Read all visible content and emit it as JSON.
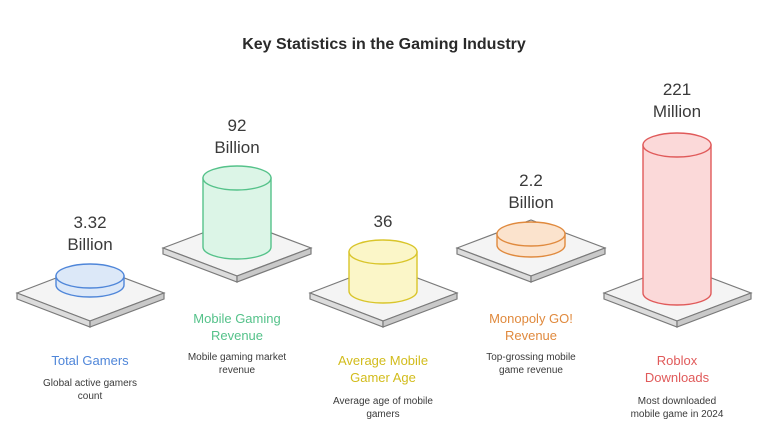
{
  "title": "Key Statistics in the Gaming Industry",
  "items": [
    {
      "value_line1": "3.32",
      "value_line2": "Billion",
      "label_line1": "Total Gamers",
      "label_line2": "",
      "desc_line1": "Global active gamers",
      "desc_line2": "count",
      "color": "#4f86d9",
      "fill": "#dce8f8"
    },
    {
      "value_line1": "92",
      "value_line2": "Billion",
      "label_line1": "Mobile Gaming",
      "label_line2": "Revenue",
      "desc_line1": "Mobile gaming market",
      "desc_line2": "revenue",
      "color": "#55c28a",
      "fill": "#dcf5e7"
    },
    {
      "value_line1": "36",
      "value_line2": "",
      "label_line1": "Average Mobile",
      "label_line2": "Gamer Age",
      "desc_line1": "Average age of mobile",
      "desc_line2": "gamers",
      "color": "#d9c52a",
      "fill": "#fbf6c8"
    },
    {
      "value_line1": "2.2",
      "value_line2": "Billion",
      "label_line1": "Monopoly GO!",
      "label_line2": "Revenue",
      "desc_line1": "Top-grossing mobile",
      "desc_line2": "game revenue",
      "color": "#e08a3e",
      "fill": "#fbe3cd"
    },
    {
      "value_line1": "221",
      "value_line2": "Million",
      "label_line1": "Roblox",
      "label_line2": "Downloads",
      "desc_line1": "Most downloaded",
      "desc_line2": "mobile game in 2024",
      "color": "#e05a5a",
      "fill": "#fbd9d9"
    }
  ]
}
